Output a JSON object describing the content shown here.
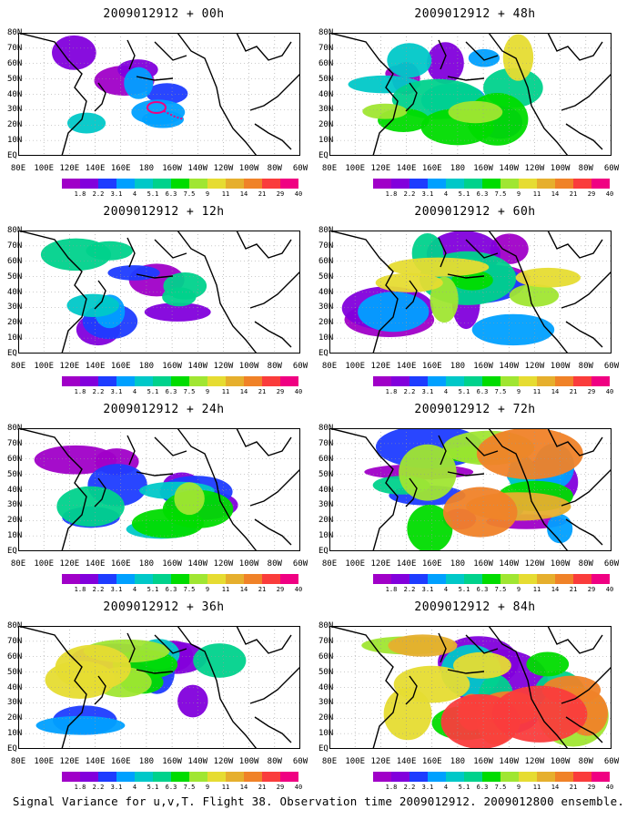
{
  "figure": {
    "caption": "Signal Variance for u,v,T. Flight 38. Observation time 2009012912. 2009012800 ensemble."
  },
  "panels": [
    {
      "title": "2009012912 + 00h",
      "extent": 0.1
    },
    {
      "title": "2009012912 + 48h",
      "extent": 0.55
    },
    {
      "title": "2009012912 + 12h",
      "extent": 0.25
    },
    {
      "title": "2009012912 + 60h",
      "extent": 0.65
    },
    {
      "title": "2009012912 + 24h",
      "extent": 0.4
    },
    {
      "title": "2009012912 + 72h",
      "extent": 0.75
    },
    {
      "title": "2009012912 + 36h",
      "extent": 0.5
    },
    {
      "title": "2009012912 + 84h",
      "extent": 0.85
    }
  ],
  "axes": {
    "x_ticks": [
      "80E",
      "100E",
      "120E",
      "140E",
      "160E",
      "180",
      "160W",
      "140W",
      "120W",
      "100W",
      "80W",
      "60W"
    ],
    "y_ticks": [
      "EQ",
      "10N",
      "20N",
      "30N",
      "40N",
      "50N",
      "60N",
      "70N",
      "80N"
    ]
  },
  "colorbar": {
    "labels": [
      "1.8",
      "2.2",
      "3.1",
      "4",
      "5.1",
      "6.3",
      "7.5",
      "9",
      "11",
      "14",
      "21",
      "29",
      "40"
    ],
    "colors": [
      "#a000c8",
      "#8200dc",
      "#1e3cff",
      "#00a0ff",
      "#00c8c8",
      "#00d28c",
      "#00dc00",
      "#a0e632",
      "#e6dc32",
      "#e6af2d",
      "#f08228",
      "#fa3c3c",
      "#f00082"
    ]
  }
}
